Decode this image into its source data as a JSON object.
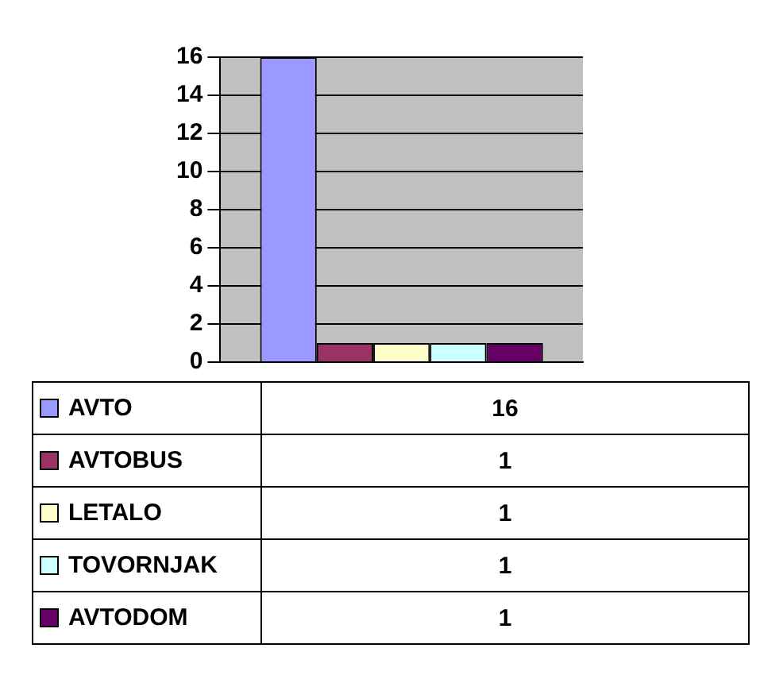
{
  "chart_data": {
    "type": "bar",
    "categories": [
      null
    ],
    "series": [
      {
        "name": "AVTO",
        "color": "#9999ff",
        "values": [
          16
        ]
      },
      {
        "name": "AVTOBUS",
        "color": "#993366",
        "values": [
          1
        ]
      },
      {
        "name": "LETALO",
        "color": "#ffffcc",
        "values": [
          1
        ]
      },
      {
        "name": "TOVORNJAK",
        "color": "#ccffff",
        "values": [
          1
        ]
      },
      {
        "name": "AVTODOM",
        "color": "#660066",
        "values": [
          1
        ]
      }
    ],
    "ylim": [
      0,
      16
    ],
    "yticks": [
      0,
      2,
      4,
      6,
      8,
      10,
      12,
      14,
      16
    ],
    "grid": "y",
    "tick_labels": "y",
    "legend": "bottom",
    "annotations": [
      "16",
      "1",
      "1",
      "1",
      "1"
    ]
  }
}
